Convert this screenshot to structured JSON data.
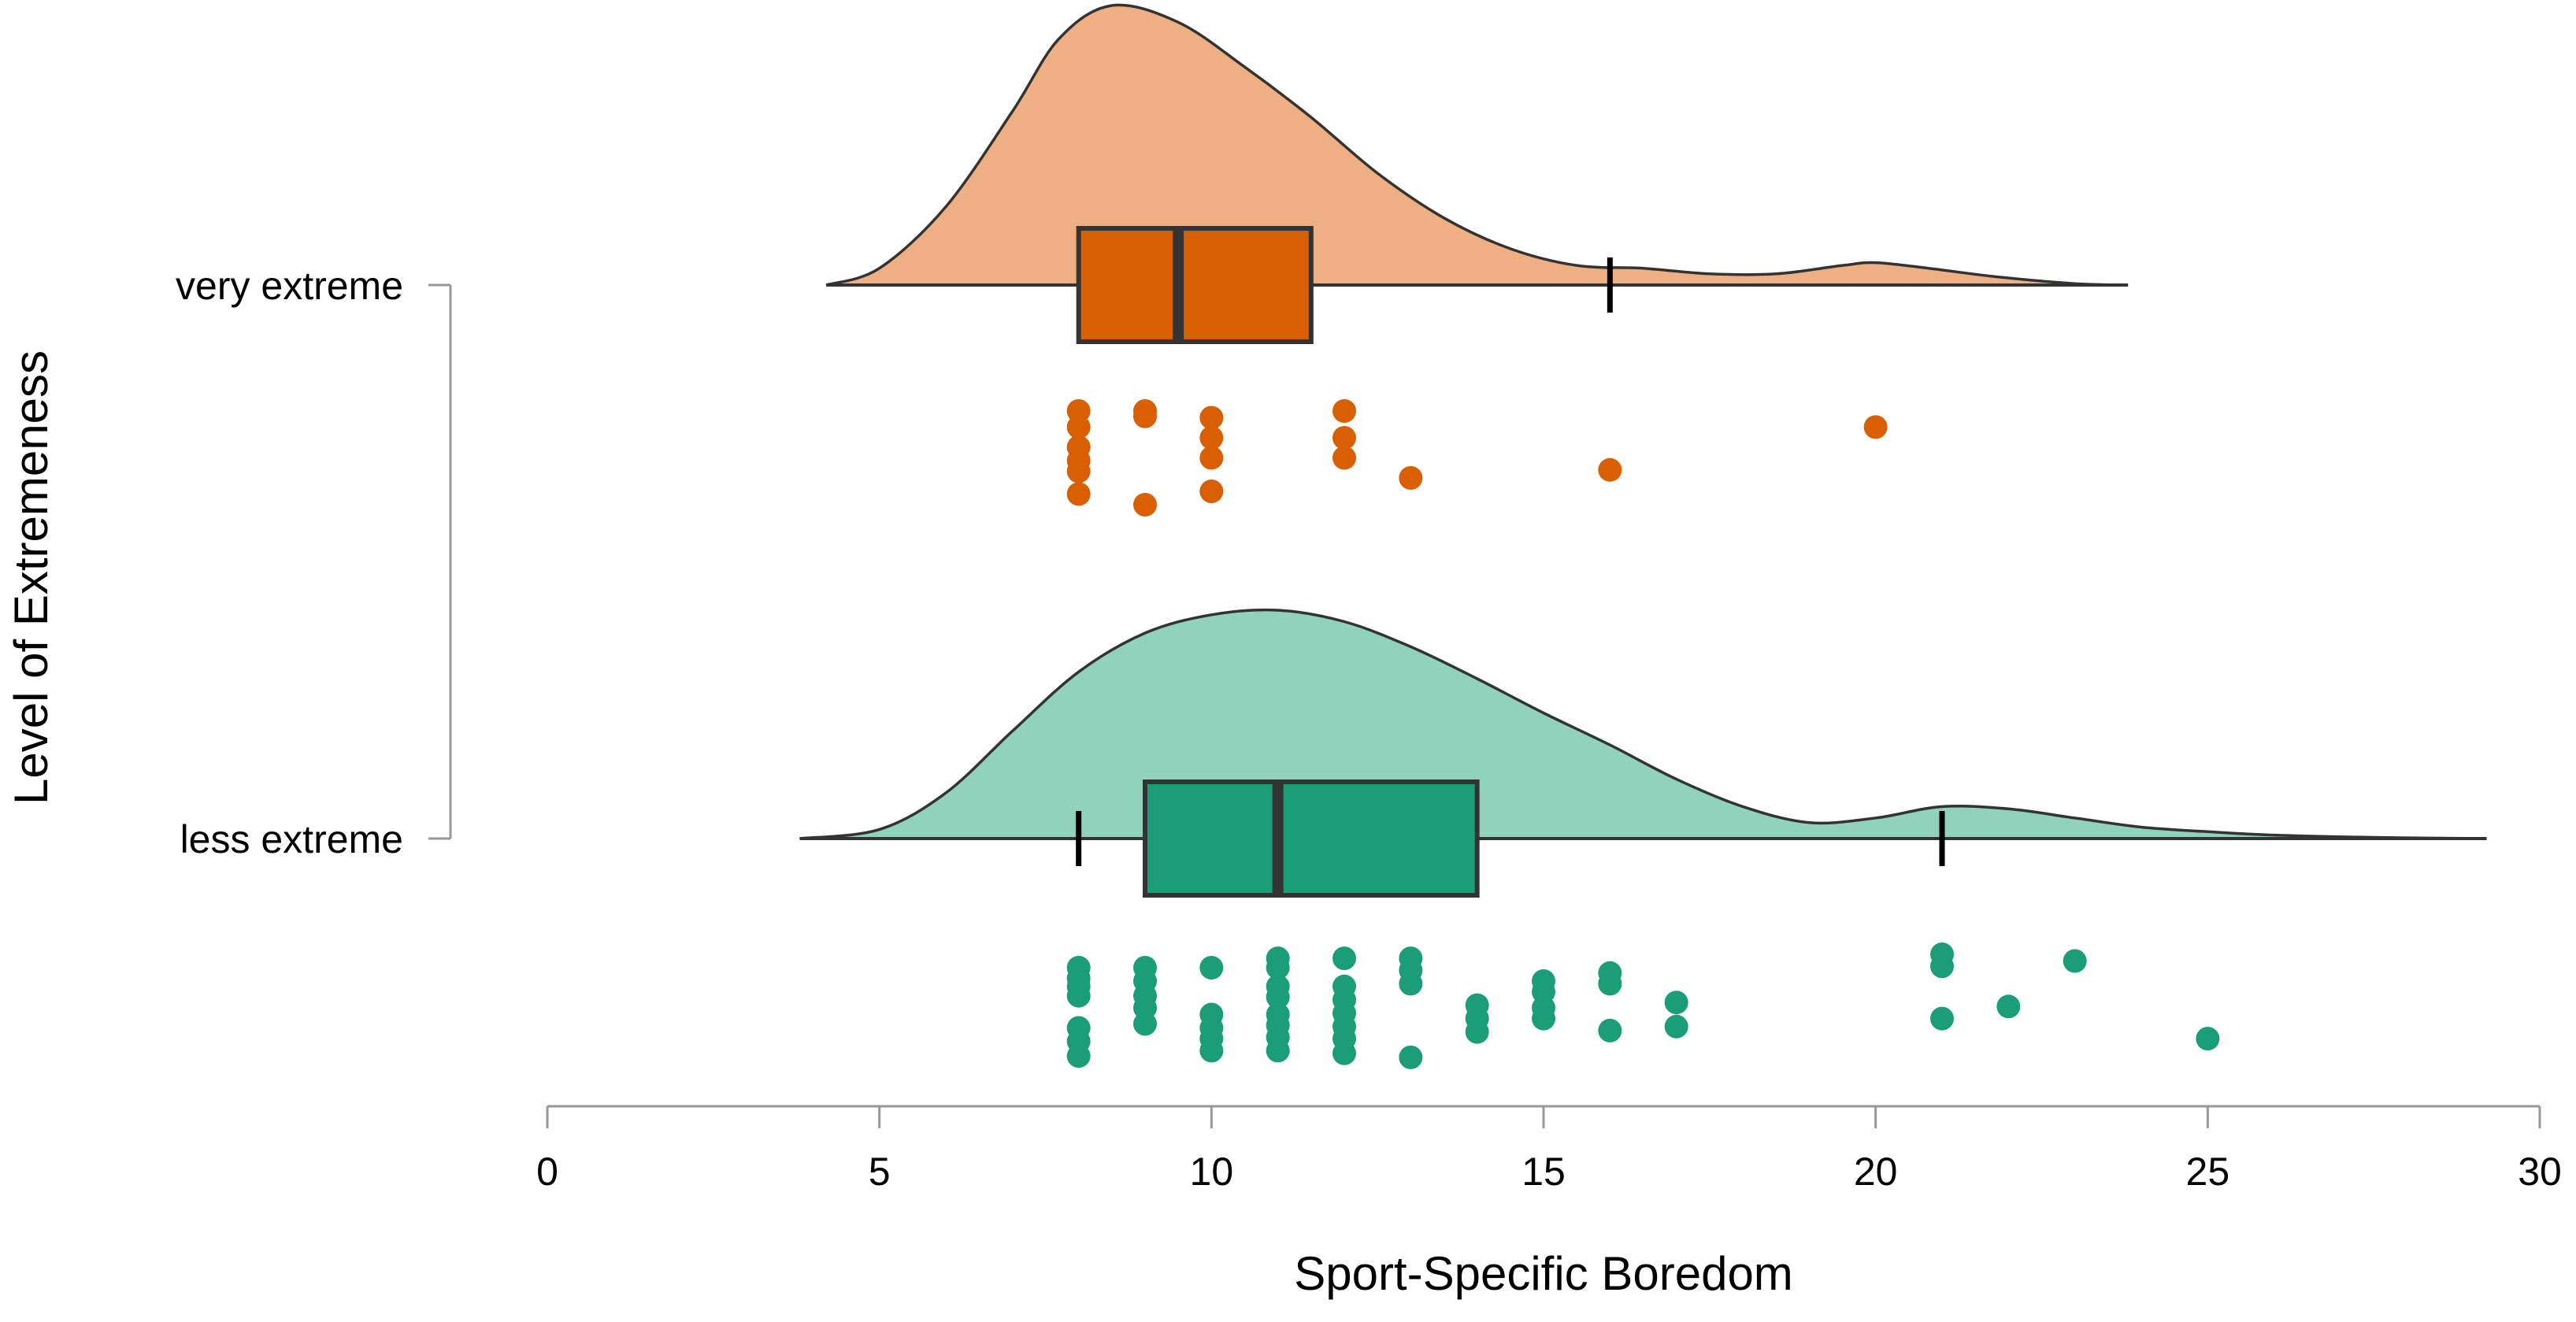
{
  "chart_data": {
    "type": "raincloud",
    "orientation": "horizontal",
    "xlabel": "Sport-Specific Boredom",
    "ylabel": "Level of Extremeness",
    "xlim": [
      0,
      30
    ],
    "xticks": [
      0,
      5,
      10,
      15,
      20,
      25,
      30
    ],
    "categories": [
      "very extreme",
      "less extreme"
    ],
    "groups": [
      {
        "category": "very extreme",
        "cloud_color": "#EEB083",
        "box_color": "#D95F02",
        "point_color": "#D95F02",
        "box": {
          "q1": 8,
          "median": 9.5,
          "q3": 11.5,
          "whisker_low": 8,
          "whisker_high": 16
        },
        "density_range": [
          4.2,
          23.8
        ],
        "density": [
          [
            4.2,
            0.0
          ],
          [
            5.0,
            0.06
          ],
          [
            6.0,
            0.28
          ],
          [
            7.0,
            0.62
          ],
          [
            7.7,
            0.88
          ],
          [
            8.5,
            1.0
          ],
          [
            9.5,
            0.94
          ],
          [
            10.5,
            0.78
          ],
          [
            11.5,
            0.6
          ],
          [
            12.5,
            0.4
          ],
          [
            13.5,
            0.24
          ],
          [
            14.5,
            0.13
          ],
          [
            15.5,
            0.07
          ],
          [
            16.5,
            0.06
          ],
          [
            17.5,
            0.04
          ],
          [
            18.5,
            0.04
          ],
          [
            19.5,
            0.07
          ],
          [
            20.0,
            0.08
          ],
          [
            20.8,
            0.06
          ],
          [
            21.8,
            0.03
          ],
          [
            23.0,
            0.005
          ],
          [
            23.8,
            0.0
          ]
        ],
        "points": [
          {
            "x": 8,
            "j": 0.1
          },
          {
            "x": 8,
            "j": 0.22
          },
          {
            "x": 8,
            "j": 0.37
          },
          {
            "x": 8,
            "j": 0.47
          },
          {
            "x": 8,
            "j": 0.55
          },
          {
            "x": 8,
            "j": 0.72
          },
          {
            "x": 9,
            "j": 0.1
          },
          {
            "x": 9,
            "j": 0.14
          },
          {
            "x": 9,
            "j": 0.8
          },
          {
            "x": 10,
            "j": 0.15
          },
          {
            "x": 10,
            "j": 0.3
          },
          {
            "x": 10,
            "j": 0.45
          },
          {
            "x": 10,
            "j": 0.7
          },
          {
            "x": 12,
            "j": 0.1
          },
          {
            "x": 12,
            "j": 0.3
          },
          {
            "x": 12,
            "j": 0.45
          },
          {
            "x": 13,
            "j": 0.6
          },
          {
            "x": 16,
            "j": 0.54
          },
          {
            "x": 20,
            "j": 0.22
          }
        ]
      },
      {
        "category": "less extreme",
        "cloud_color": "#90D2BB",
        "box_color": "#1B9E77",
        "point_color": "#1B9E77",
        "box": {
          "q1": 9,
          "median": 11,
          "q3": 14,
          "whisker_low": 8,
          "whisker_high": 21
        },
        "density_range": [
          3.8,
          29.2
        ],
        "density": [
          [
            3.8,
            0.0
          ],
          [
            5.0,
            0.04
          ],
          [
            6.0,
            0.2
          ],
          [
            7.0,
            0.47
          ],
          [
            8.0,
            0.73
          ],
          [
            9.0,
            0.9
          ],
          [
            10.0,
            0.98
          ],
          [
            11.0,
            1.0
          ],
          [
            12.0,
            0.95
          ],
          [
            13.0,
            0.84
          ],
          [
            14.0,
            0.7
          ],
          [
            15.0,
            0.55
          ],
          [
            16.0,
            0.41
          ],
          [
            17.0,
            0.26
          ],
          [
            18.0,
            0.14
          ],
          [
            19.0,
            0.07
          ],
          [
            20.0,
            0.09
          ],
          [
            21.0,
            0.14
          ],
          [
            22.0,
            0.13
          ],
          [
            23.0,
            0.09
          ],
          [
            24.0,
            0.05
          ],
          [
            25.0,
            0.03
          ],
          [
            26.0,
            0.015
          ],
          [
            27.5,
            0.005
          ],
          [
            29.2,
            0.0
          ]
        ],
        "points": [
          {
            "x": 8,
            "j": 0.1
          },
          {
            "x": 8,
            "j": 0.18
          },
          {
            "x": 8,
            "j": 0.24
          },
          {
            "x": 8,
            "j": 0.31
          },
          {
            "x": 8,
            "j": 0.55
          },
          {
            "x": 8,
            "j": 0.65
          },
          {
            "x": 8,
            "j": 0.76
          },
          {
            "x": 9,
            "j": 0.1
          },
          {
            "x": 9,
            "j": 0.2
          },
          {
            "x": 9,
            "j": 0.31
          },
          {
            "x": 9,
            "j": 0.4
          },
          {
            "x": 9,
            "j": 0.52
          },
          {
            "x": 10,
            "j": 0.1
          },
          {
            "x": 10,
            "j": 0.45
          },
          {
            "x": 10,
            "j": 0.55
          },
          {
            "x": 10,
            "j": 0.63
          },
          {
            "x": 10,
            "j": 0.72
          },
          {
            "x": 11,
            "j": 0.03
          },
          {
            "x": 11,
            "j": 0.1
          },
          {
            "x": 11,
            "j": 0.24
          },
          {
            "x": 11,
            "j": 0.32
          },
          {
            "x": 11,
            "j": 0.45
          },
          {
            "x": 11,
            "j": 0.53
          },
          {
            "x": 11,
            "j": 0.62
          },
          {
            "x": 11,
            "j": 0.72
          },
          {
            "x": 12,
            "j": 0.03
          },
          {
            "x": 12,
            "j": 0.24
          },
          {
            "x": 12,
            "j": 0.34
          },
          {
            "x": 12,
            "j": 0.44
          },
          {
            "x": 12,
            "j": 0.54
          },
          {
            "x": 12,
            "j": 0.63
          },
          {
            "x": 12,
            "j": 0.74
          },
          {
            "x": 13,
            "j": 0.03
          },
          {
            "x": 13,
            "j": 0.12
          },
          {
            "x": 13,
            "j": 0.22
          },
          {
            "x": 13,
            "j": 0.77
          },
          {
            "x": 14,
            "j": 0.38
          },
          {
            "x": 14,
            "j": 0.48
          },
          {
            "x": 14,
            "j": 0.58
          },
          {
            "x": 15,
            "j": 0.2
          },
          {
            "x": 15,
            "j": 0.28
          },
          {
            "x": 15,
            "j": 0.4
          },
          {
            "x": 15,
            "j": 0.48
          },
          {
            "x": 16,
            "j": 0.14
          },
          {
            "x": 16,
            "j": 0.22
          },
          {
            "x": 16,
            "j": 0.57
          },
          {
            "x": 17,
            "j": 0.36
          },
          {
            "x": 17,
            "j": 0.54
          },
          {
            "x": 21,
            "j": 0.0
          },
          {
            "x": 21,
            "j": 0.09
          },
          {
            "x": 21,
            "j": 0.48
          },
          {
            "x": 22,
            "j": 0.39
          },
          {
            "x": 23,
            "j": 0.05
          },
          {
            "x": 25,
            "j": 0.63
          }
        ]
      }
    ]
  }
}
